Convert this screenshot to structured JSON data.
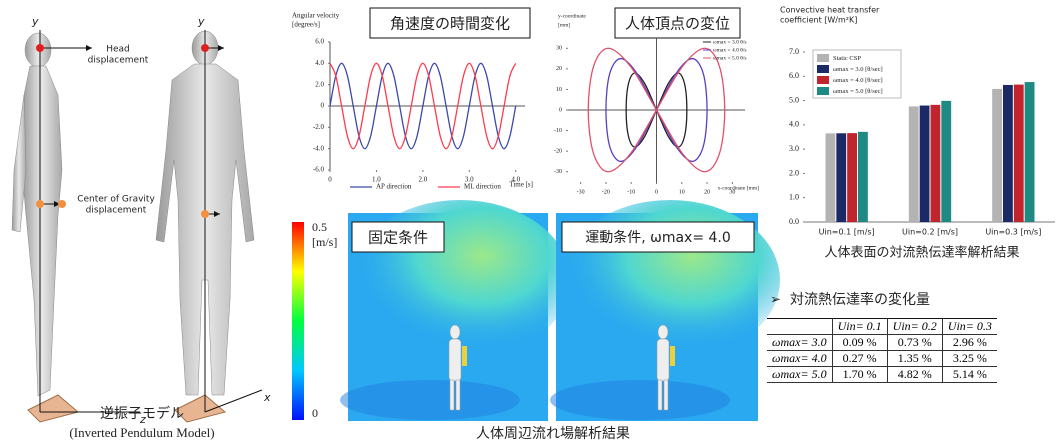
{
  "chart_data": [
    {
      "type": "line",
      "title": "角速度の時間変化",
      "y_label": [
        "Angular velocity",
        "[degree/s]"
      ],
      "x_label": "Time [s]",
      "x": [
        0,
        0.125,
        0.25,
        0.375,
        0.5,
        0.625,
        0.75,
        0.875,
        1,
        1.125,
        1.25,
        1.375,
        1.5,
        1.625,
        1.75,
        1.875,
        2,
        2.125,
        2.25,
        2.375,
        2.5,
        2.625,
        2.75,
        2.875,
        3,
        3.125,
        3.25,
        3.375,
        3.5,
        3.625,
        3.75,
        3.875,
        4
      ],
      "series": [
        {
          "name": "AP direction",
          "color": "#3b4aa8",
          "values": [
            0,
            2.83,
            4,
            2.83,
            0,
            -2.83,
            -4,
            -2.83,
            0,
            2.83,
            4,
            2.83,
            0,
            -2.83,
            -4,
            -2.83,
            0,
            2.83,
            4,
            2.83,
            0,
            -2.83,
            -4,
            -2.83,
            0,
            2.83,
            4,
            2.83,
            0,
            -2.83,
            -4,
            -2.83,
            0
          ]
        },
        {
          "name": "ML direction",
          "color": "#ff3b4e",
          "values": [
            4,
            2.83,
            0,
            -2.83,
            -4,
            -2.83,
            0,
            2.83,
            4,
            2.83,
            0,
            -2.83,
            -4,
            -2.83,
            0,
            2.83,
            4,
            2.83,
            0,
            -2.83,
            -4,
            -2.83,
            0,
            2.83,
            4,
            2.83,
            0,
            -2.83,
            -4,
            -2.83,
            0,
            2.83,
            4
          ]
        }
      ],
      "xlim": [
        0,
        4.2
      ],
      "ylim": [
        -6,
        6
      ],
      "xticks": [
        0,
        {
          "value": 1,
          "label": "1.0"
        },
        {
          "value": 2,
          "label": "2.0"
        },
        {
          "value": 3,
          "label": "3.0"
        },
        {
          "value": 4,
          "label": "4.0"
        }
      ],
      "yticks": [
        {
          "value": 6,
          "label": "6.0"
        },
        {
          "value": 4,
          "label": "4.0"
        },
        {
          "value": 2,
          "label": "2.0"
        },
        0,
        {
          "value": -2,
          "label": "-2.0"
        },
        {
          "value": -4,
          "label": "-4.0"
        },
        {
          "value": -6,
          "label": "-6.0"
        }
      ],
      "grid": false,
      "legend": "bottom"
    },
    {
      "type": "line",
      "title": "人体頂点の変位",
      "y_label": [
        "y-coordinate",
        "[mm]"
      ],
      "x_label": "x-coordinate [mm]",
      "series": [
        {
          "name": "ωmax = 3.0 θ/s",
          "color": "#222222",
          "x": [
            0,
            4.6,
            8.5,
            11.1,
            12,
            11.1,
            8.5,
            4.6,
            0,
            -4.6,
            -8.5,
            -11.1,
            -12,
            -11.1,
            -8.5,
            -4.6,
            0
          ],
          "values": [
            0,
            12.7,
            18,
            12.7,
            0,
            -12.7,
            -18,
            -12.7,
            0,
            12.7,
            18,
            12.7,
            0,
            -12.7,
            -18,
            -12.7,
            0
          ]
        },
        {
          "name": "ωmax = 4.0 θ/s",
          "color": "#5a3fc0",
          "x": [
            0,
            7.7,
            14.1,
            18.5,
            20,
            18.5,
            14.1,
            7.7,
            0,
            -7.7,
            -14.1,
            -18.5,
            -20,
            -18.5,
            -14.1,
            -7.7,
            0
          ],
          "values": [
            0,
            17.7,
            25,
            17.7,
            0,
            -17.7,
            -25,
            -17.7,
            0,
            17.7,
            25,
            17.7,
            0,
            -17.7,
            -25,
            -17.7,
            0
          ]
        },
        {
          "name": "ωmax = 5.0 θ/s",
          "color": "#e0506a",
          "x": [
            0,
            10.3,
            19.1,
            24.9,
            27,
            24.9,
            19.1,
            10.3,
            0,
            -10.3,
            -19.1,
            -24.9,
            -27,
            -24.9,
            -19.1,
            -10.3,
            0
          ],
          "values": [
            0,
            21.2,
            30,
            21.2,
            0,
            -21.2,
            -30,
            -21.2,
            0,
            21.2,
            30,
            21.2,
            0,
            -21.2,
            -30,
            -21.2,
            0
          ]
        }
      ],
      "xlim": [
        -35,
        35
      ],
      "ylim": [
        -35,
        35
      ],
      "xticks": [
        -30,
        -20,
        -10,
        0,
        10,
        20,
        30
      ],
      "yticks": [
        30,
        20,
        10,
        0,
        -10,
        -20,
        -30
      ],
      "grid": false,
      "legend": "top-right"
    },
    {
      "type": "bar",
      "title": [
        "Convective heat transfer",
        "coefficient [W/m²K]"
      ],
      "caption": "人体表面の対流熱伝達率解析結果",
      "categories": [
        "Uin=0.1 [m/s]",
        "Uin=0.2 [m/s]",
        "Uin=0.3 [m/s]"
      ],
      "series": [
        {
          "name": "Static CSP",
          "color": "#b3b3b3",
          "values": [
            3.65,
            4.76,
            5.48
          ]
        },
        {
          "name": "ωmax = 3.0 [θ/sec]",
          "color": "#1b2a66",
          "values": [
            3.653,
            4.795,
            5.642
          ]
        },
        {
          "name": "ωmax = 4.0 [θ/sec]",
          "color": "#c0242c",
          "values": [
            3.66,
            4.824,
            5.658
          ]
        },
        {
          "name": "ωmax = 5.0 [θ/sec]",
          "color": "#1f8a84",
          "values": [
            3.712,
            4.989,
            5.762
          ]
        }
      ],
      "ylim": [
        0,
        7
      ],
      "yticks": [
        {
          "value": 0,
          "label": "0.0"
        },
        {
          "value": 1,
          "label": "1.0"
        },
        {
          "value": 2,
          "label": "2.0"
        },
        {
          "value": 3,
          "label": "3.0"
        },
        {
          "value": 4,
          "label": "4.0"
        },
        {
          "value": 5,
          "label": "5.0"
        },
        {
          "value": 6,
          "label": "6.0"
        },
        {
          "value": 7,
          "label": "7.0"
        }
      ],
      "grid": false,
      "legend": "top-left"
    }
  ],
  "model": {
    "caption": "逆振子モデル",
    "subcaption": "(Inverted Pendulum Model)",
    "head_label": [
      "Head",
      "displacement"
    ],
    "cog_label": [
      "Center of Gravity",
      "displacement"
    ],
    "axes": [
      "y",
      "z",
      "y",
      "x"
    ]
  },
  "flow": {
    "caption": "人体周辺流れ場解析結果",
    "panels": [
      "固定条件",
      "運動条件, ωmax= 4.0"
    ],
    "colorbar": {
      "max": "0.5",
      "unit": "[m/s]",
      "min": "0"
    }
  },
  "table": {
    "title": "対流熱伝達率の変化量",
    "header": [
      "",
      "Uin= 0.1",
      "Uin= 0.2",
      "Uin= 0.3"
    ],
    "rows": [
      [
        "ωmax= 3.0",
        "0.09 %",
        "0.73 %",
        "2.96 %"
      ],
      [
        "ωmax= 4.0",
        "0.27 %",
        "1.35 %",
        "3.25 %"
      ],
      [
        "ωmax= 5.0",
        "1.70 %",
        "4.82 %",
        "5.14 %"
      ]
    ]
  }
}
